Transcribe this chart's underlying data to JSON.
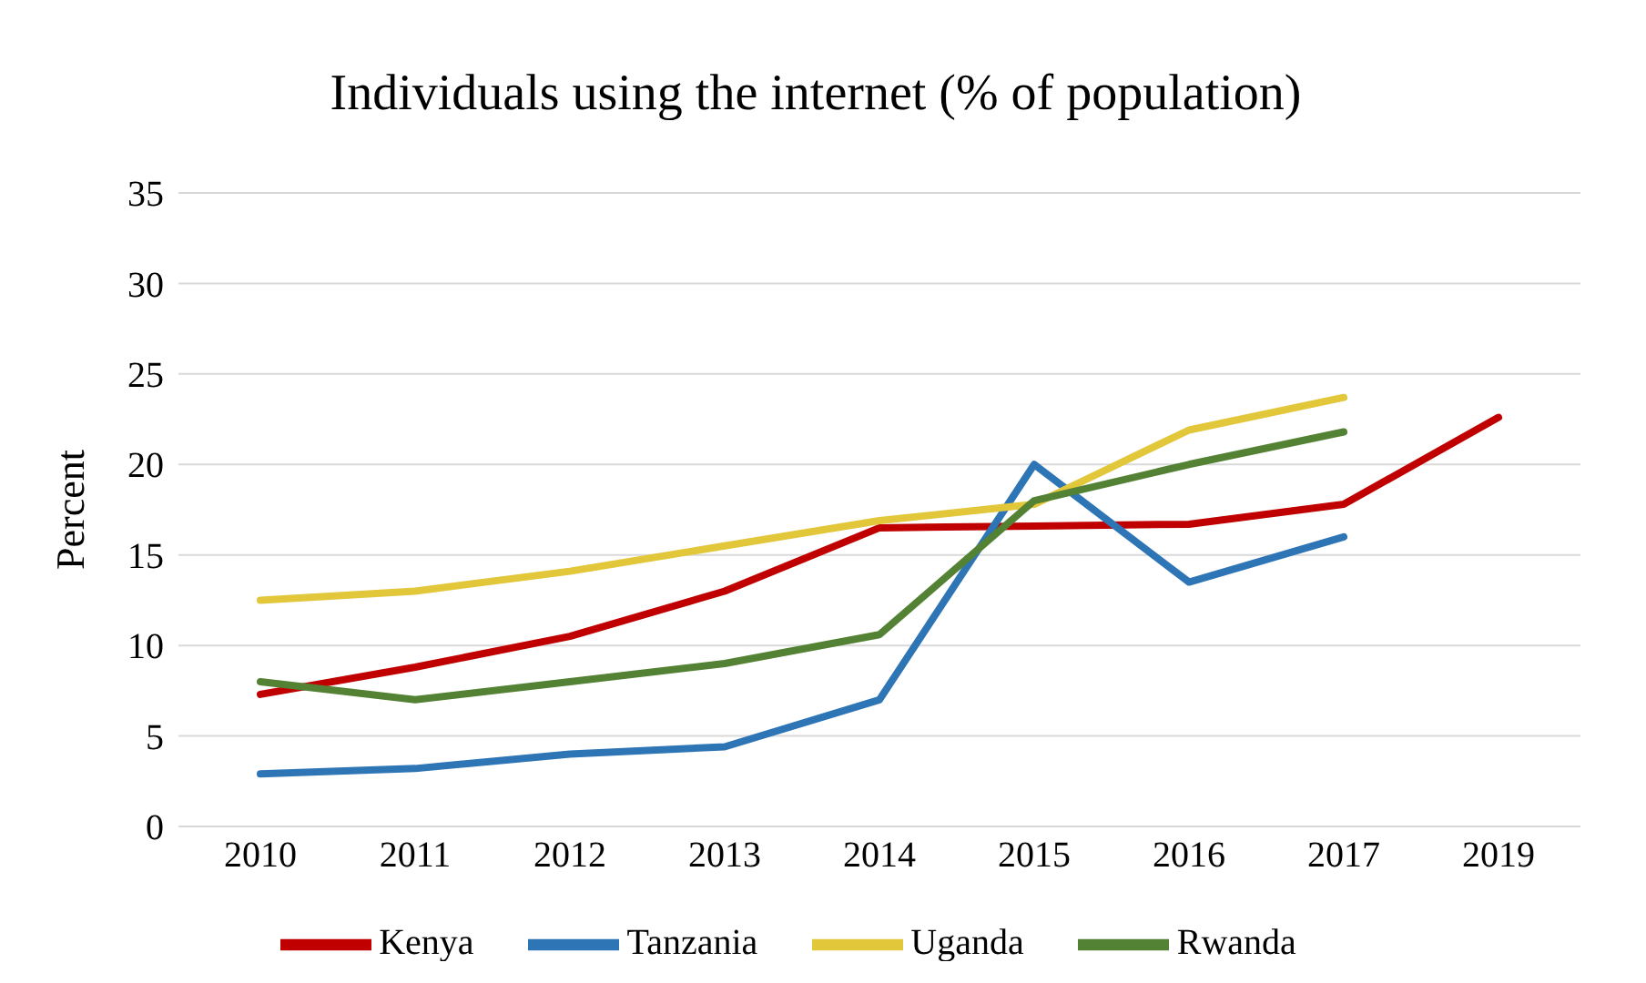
{
  "chart_data": {
    "type": "line",
    "title": "Individuals using the internet (% of population)",
    "ylabel": "Percent",
    "categories": [
      "2010",
      "2011",
      "2012",
      "2013",
      "2014",
      "2015",
      "2016",
      "2017",
      "2019"
    ],
    "series": [
      {
        "name": "Kenya",
        "color": "#c00000",
        "values": [
          7.3,
          8.8,
          10.5,
          13,
          16.5,
          16.6,
          16.7,
          17.8,
          22.6
        ]
      },
      {
        "name": "Tanzania",
        "color": "#2e75b6",
        "values": [
          2.9,
          3.2,
          4.0,
          4.4,
          7.0,
          20.0,
          13.5,
          16.0,
          null
        ]
      },
      {
        "name": "Uganda",
        "color": "#e2c73b",
        "values": [
          12.5,
          13.0,
          14.1,
          15.5,
          16.9,
          17.8,
          21.9,
          23.7,
          null
        ]
      },
      {
        "name": "Rwanda",
        "color": "#548235",
        "values": [
          8.0,
          7.0,
          8.0,
          9.0,
          10.6,
          18.0,
          20.0,
          21.8,
          null
        ]
      }
    ],
    "ylim": [
      0,
      35
    ],
    "yticks": [
      0,
      5,
      10,
      15,
      20,
      25,
      30,
      35
    ],
    "grid": "y",
    "legend": "bottom",
    "marker": "none",
    "line_style": "solid"
  }
}
